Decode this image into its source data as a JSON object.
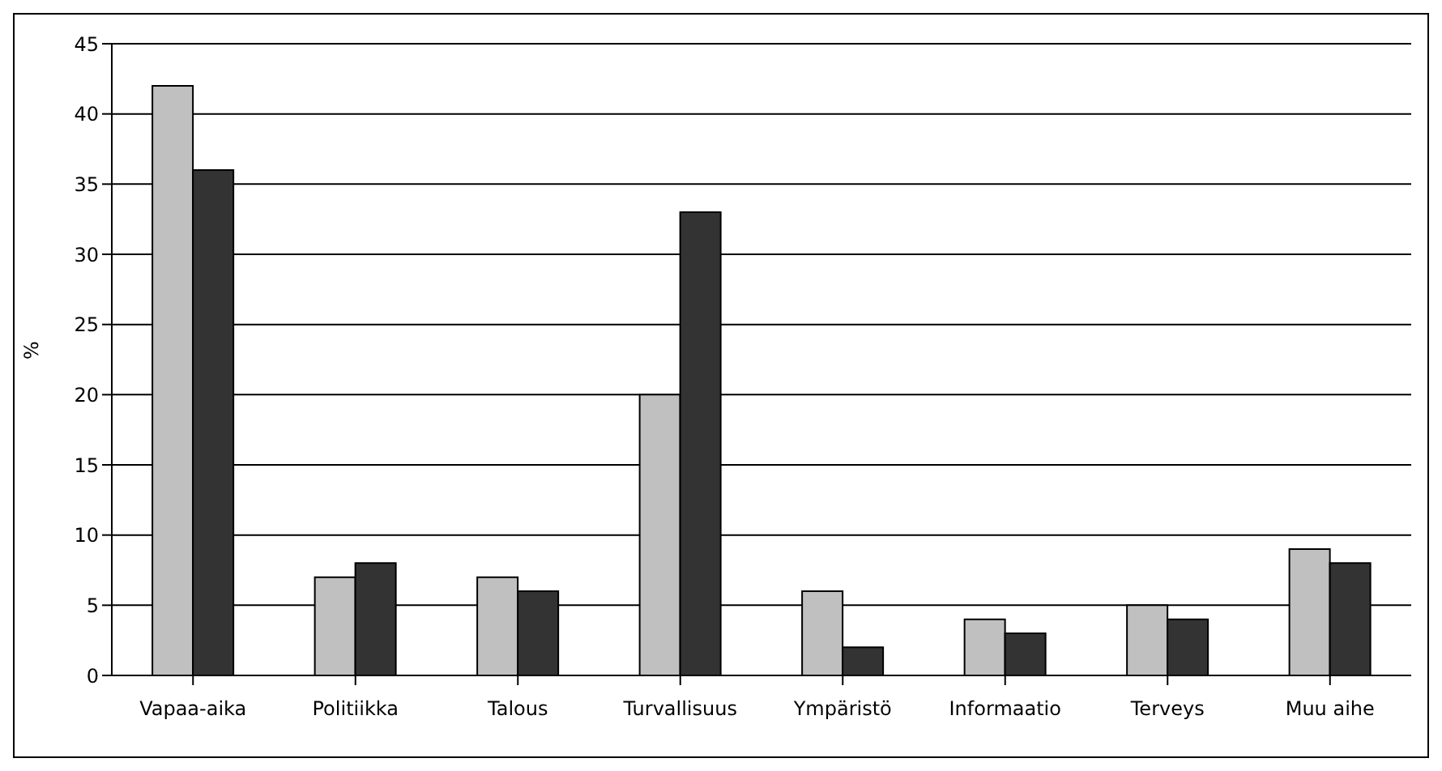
{
  "chart_data": {
    "type": "bar",
    "ylabel": "%",
    "categories": [
      "Vapaa-aika",
      "Politiikka",
      "Talous",
      "Turvallisuus",
      "Ympäristö",
      "Informaatio",
      "Terveys",
      "Muu aihe"
    ],
    "series": [
      {
        "color": "#c0c0c0",
        "values": [
          42,
          7,
          7,
          20,
          6,
          4,
          5,
          9
        ]
      },
      {
        "color": "#333333",
        "values": [
          36,
          8,
          6,
          33,
          2,
          3,
          4,
          8
        ]
      }
    ],
    "ylim": [
      0,
      45
    ],
    "yticks": [
      0,
      5,
      10,
      15,
      20,
      25,
      30,
      35,
      40,
      45
    ],
    "grid": "y",
    "legend": false
  }
}
